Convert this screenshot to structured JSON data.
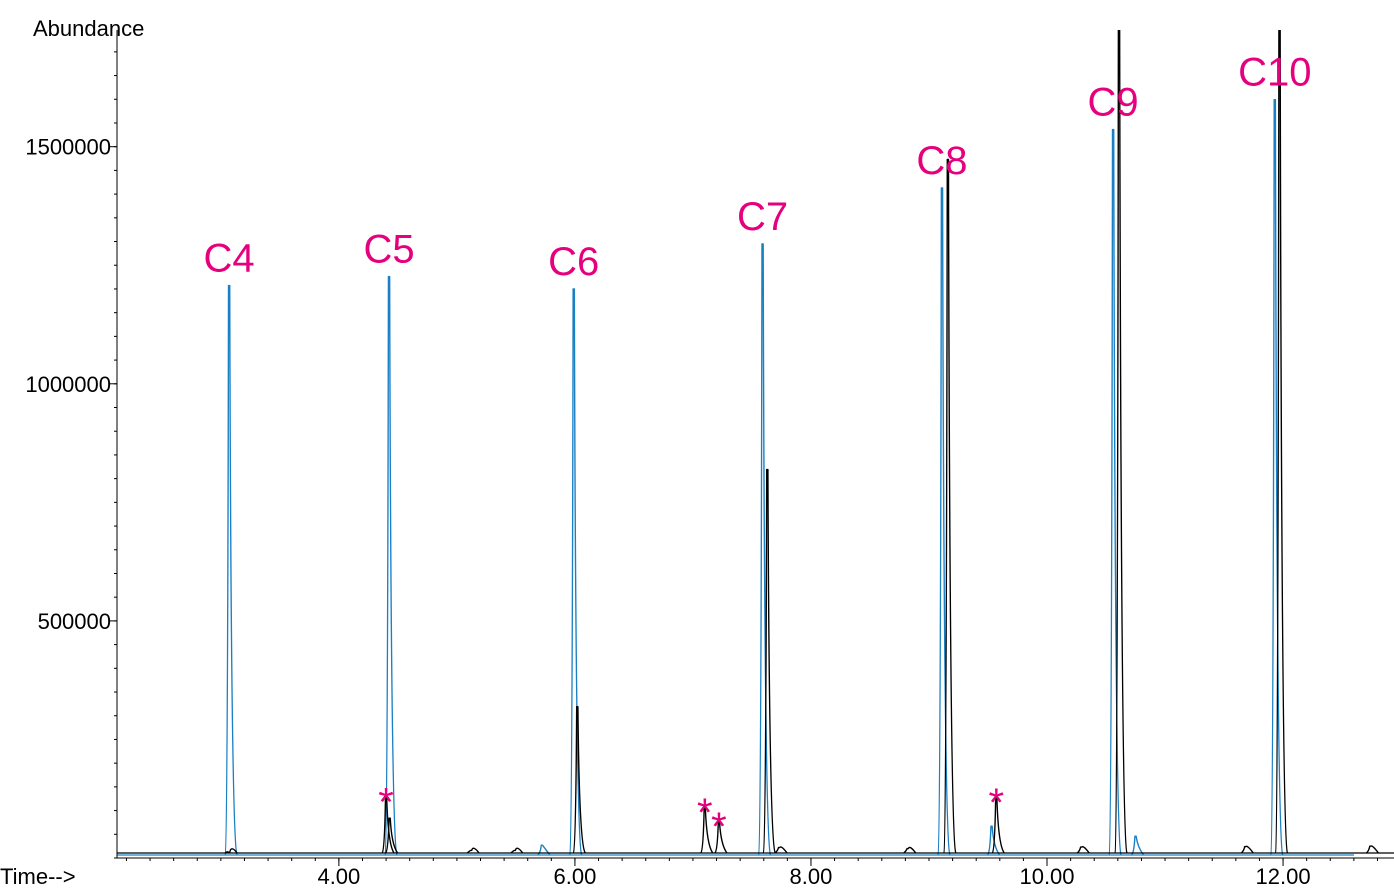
{
  "chart_data": {
    "type": "chromatogram",
    "y_label": "Abundance",
    "x_label": "Time-->",
    "xlim": [
      2.12,
      12.94
    ],
    "ylim": [
      0,
      1725000
    ],
    "xticks": [
      {
        "value": 4,
        "label": "4.00"
      },
      {
        "value": 6,
        "label": "6.00"
      },
      {
        "value": 8,
        "label": "8.00"
      },
      {
        "value": 10,
        "label": "10.00"
      },
      {
        "value": 12,
        "label": "12.00"
      }
    ],
    "yticks": [
      500000,
      1000000,
      1500000
    ],
    "label_color": "#e6007e",
    "series": [
      {
        "name": "blue trace",
        "color": "#1a80c4",
        "x": [
          3.07,
          4.425,
          5.72,
          5.99,
          7.59,
          9.11,
          9.53,
          10.56,
          10.75,
          11.93
        ],
        "values": [
          1207000,
          1226000,
          27000,
          1200000,
          1295000,
          1413000,
          67000,
          1536000,
          46000,
          1599000
        ],
        "labels": [
          "C4",
          "C5",
          null,
          "C6",
          "C7",
          "C8",
          null,
          "C9",
          null,
          "C10"
        ]
      },
      {
        "name": "black trace",
        "color": "#000000",
        "x": [
          3.07,
          4.4,
          4.43,
          5.12,
          5.49,
          6.02,
          7.1,
          7.22,
          7.63,
          7.73,
          8.82,
          9.16,
          9.57,
          10.29,
          10.61,
          11.68,
          11.97,
          12.74
        ],
        "values": [
          12000,
          128000,
          84000,
          16000,
          16000,
          319000,
          105000,
          76000,
          819000,
          22000,
          20000,
          1473000,
          127000,
          23000,
          1800000,
          24000,
          1800000,
          25000
        ],
        "labels": [
          null,
          "*",
          null,
          null,
          null,
          null,
          "*",
          "*",
          null,
          null,
          null,
          null,
          "*",
          null,
          null,
          null,
          null,
          null
        ]
      }
    ]
  }
}
